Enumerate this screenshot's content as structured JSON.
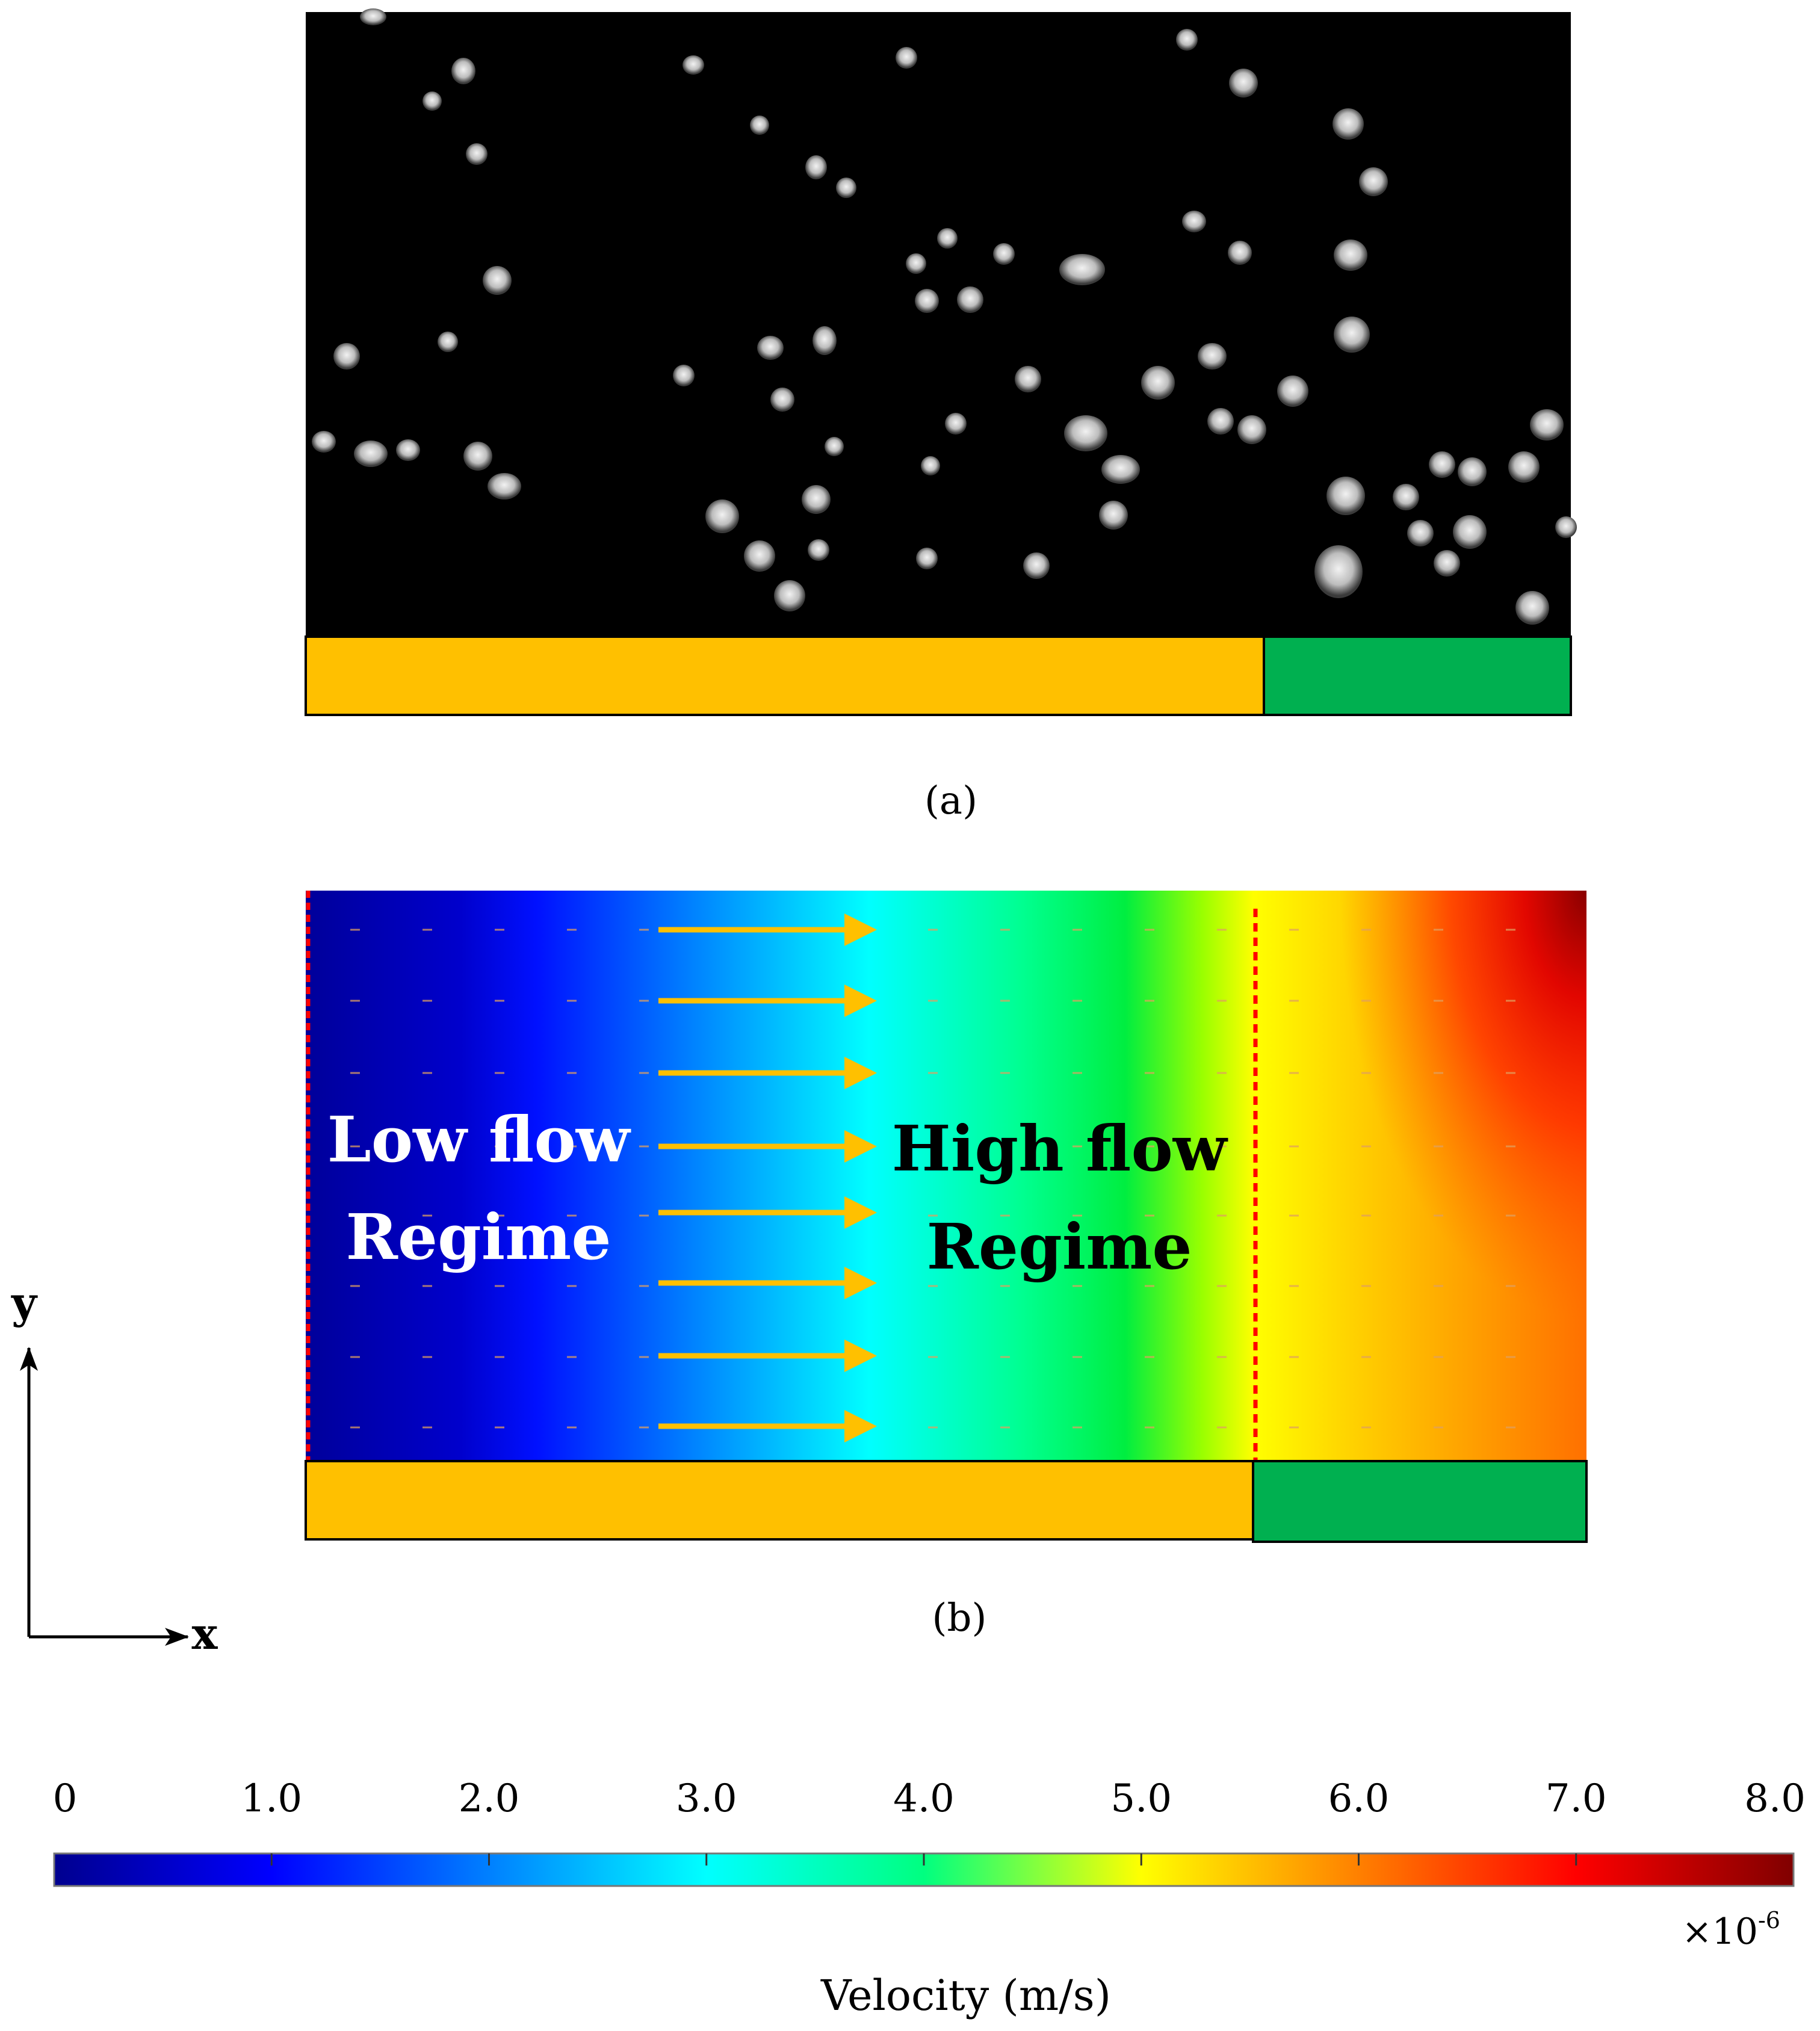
{
  "panel_a": {
    "caption": "(a)",
    "description_bar_colors": {
      "left": "#FFC000",
      "right": "#00B050"
    }
  },
  "panel_b": {
    "caption": "(b)",
    "low_flow_label": [
      "Low flow",
      "Regime"
    ],
    "high_flow_label": [
      "High flow",
      "Regime"
    ],
    "arrow_color": "#FFC000",
    "divider_color": "#FF0000",
    "bar_colors": {
      "left": "#FFC000",
      "right": "#00B050"
    }
  },
  "axes": {
    "y_label": "y",
    "x_label": "x"
  },
  "colorbar": {
    "tick_labels": [
      "0",
      "1.0",
      "2.0",
      "3.0",
      "4.0",
      "5.0",
      "6.0",
      "7.0",
      "8.0"
    ],
    "exponent_prefix": "×10",
    "exponent_power": "-6",
    "label": "Velocity (m/s)",
    "range": [
      0,
      8.0
    ],
    "colormap": [
      "#00008F",
      "#0000FF",
      "#0080FF",
      "#00FFFF",
      "#00FF80",
      "#FFFF00",
      "#FF8000",
      "#FF0000",
      "#800000"
    ]
  }
}
